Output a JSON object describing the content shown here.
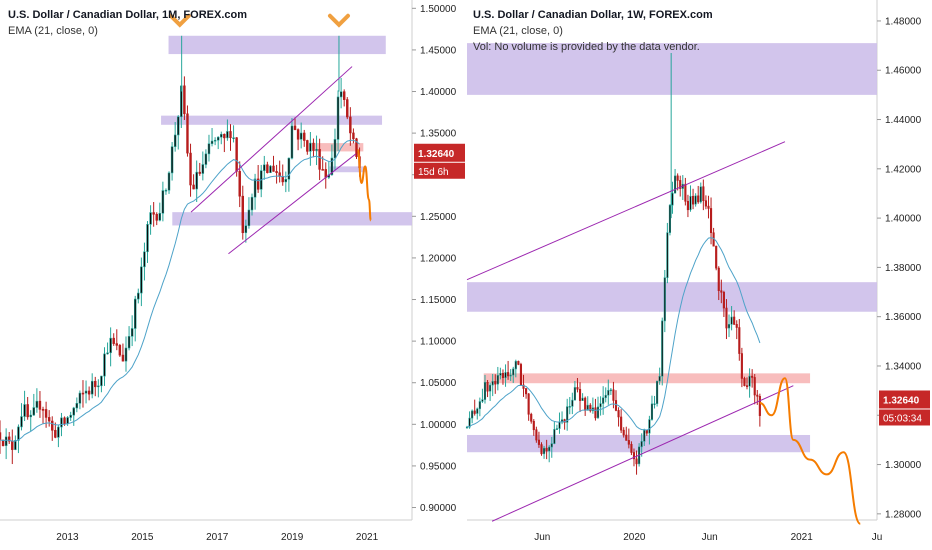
{
  "colors": {
    "up": "#26a69a",
    "down": "#b71c1c",
    "body_up": "#0a0a0a",
    "ema": "#4ea3c9",
    "zone": "#cdbfea",
    "resist_zone": "#f7b6b6",
    "channel": "#9c27b0",
    "projection": "#f57c00",
    "price_tag": "#c62828",
    "grid": "#e6e6e6"
  },
  "chart_data": [
    {
      "type": "candlestick",
      "title": "U.S. Dollar / Canadian Dollar, 1M, FOREX.com",
      "indicator": "EMA (21, close, 0)",
      "y_ticks": [
        "0.90000",
        "0.95000",
        "1.00000",
        "1.05000",
        "1.10000",
        "1.15000",
        "1.20000",
        "1.25000",
        "1.30000",
        "1.35000",
        "1.40000",
        "1.45000",
        "1.50000"
      ],
      "ylim": [
        0.885,
        1.51
      ],
      "x_ticks": [
        "2013",
        "2015",
        "2017",
        "2019",
        "2021"
      ],
      "xlim": [
        2011.2,
        2022.2
      ],
      "last_price": "1.32640",
      "countdown": "15d 6h",
      "price_path": [
        [
          2011.2,
          0.99
        ],
        [
          2011.5,
          0.97
        ],
        [
          2011.8,
          1.02
        ],
        [
          2012.0,
          1.0
        ],
        [
          2012.3,
          1.03
        ],
        [
          2012.6,
          0.99
        ],
        [
          2012.9,
          1.0
        ],
        [
          2013.2,
          1.02
        ],
        [
          2013.5,
          1.04
        ],
        [
          2013.8,
          1.05
        ],
        [
          2014.1,
          1.1
        ],
        [
          2014.5,
          1.08
        ],
        [
          2014.9,
          1.16
        ],
        [
          2015.2,
          1.25
        ],
        [
          2015.5,
          1.26
        ],
        [
          2015.8,
          1.33
        ],
        [
          2016.05,
          1.4
        ],
        [
          2016.3,
          1.28
        ],
        [
          2016.6,
          1.31
        ],
        [
          2016.9,
          1.34
        ],
        [
          2017.2,
          1.34
        ],
        [
          2017.4,
          1.36
        ],
        [
          2017.7,
          1.23
        ],
        [
          2017.9,
          1.28
        ],
        [
          2018.2,
          1.3
        ],
        [
          2018.5,
          1.31
        ],
        [
          2018.8,
          1.29
        ],
        [
          2019.0,
          1.36
        ],
        [
          2019.3,
          1.34
        ],
        [
          2019.6,
          1.33
        ],
        [
          2019.9,
          1.3
        ],
        [
          2020.1,
          1.32
        ],
        [
          2020.25,
          1.41
        ],
        [
          2020.5,
          1.36
        ],
        [
          2020.7,
          1.32
        ],
        [
          2020.8,
          1.31
        ]
      ],
      "zones": [
        {
          "y0": 1.445,
          "y1": 1.467,
          "x0": 2015.7,
          "x1": 2021.5
        },
        {
          "y0": 1.36,
          "y1": 1.371,
          "x0": 2015.5,
          "x1": 2021.4
        },
        {
          "y0": 1.303,
          "y1": 1.31,
          "x0": 2020.0,
          "x1": 2021.0
        },
        {
          "y0": 1.239,
          "y1": 1.255,
          "x0": 2015.8,
          "x1": 2022.2
        }
      ],
      "resist_zone": {
        "y0": 1.328,
        "y1": 1.338,
        "x0": 2019.6,
        "x1": 2020.9
      },
      "channel_lines": [
        [
          [
            2016.3,
            1.255
          ],
          [
            2020.6,
            1.43
          ]
        ],
        [
          [
            2017.3,
            1.205
          ],
          [
            2020.7,
            1.325
          ]
        ]
      ],
      "projection": [
        [
          2020.75,
          1.33
        ],
        [
          2020.85,
          1.29
        ],
        [
          2020.95,
          1.31
        ],
        [
          2021.05,
          1.27
        ],
        [
          2021.1,
          1.245
        ]
      ],
      "markers": [
        [
          2016.0,
          1.485
        ],
        [
          2020.25,
          1.485
        ]
      ]
    },
    {
      "type": "candlestick",
      "title": "U.S. Dollar / Canadian Dollar, 1W, FOREX.com",
      "indicator": "EMA (21, close, 0)",
      "note": "Vol: No volume is provided by the data vendor.",
      "y_ticks": [
        "1.28000",
        "1.30000",
        "1.32000",
        "1.34000",
        "1.36000",
        "1.38000",
        "1.40000",
        "1.42000",
        "1.44000",
        "1.46000",
        "1.48000"
      ],
      "ylim": [
        1.2775,
        1.4885
      ],
      "x_ticks": [
        "Jun",
        "2020",
        "Jun",
        "2021",
        "Ju"
      ],
      "xlim": [
        2019.0,
        2021.45
      ],
      "last_price": "1.32640",
      "countdown": "05:03:34",
      "price_path": [
        [
          2019.0,
          1.315
        ],
        [
          2019.1,
          1.33
        ],
        [
          2019.2,
          1.335
        ],
        [
          2019.3,
          1.34
        ],
        [
          2019.38,
          1.32
        ],
        [
          2019.45,
          1.305
        ],
        [
          2019.55,
          1.315
        ],
        [
          2019.65,
          1.33
        ],
        [
          2019.75,
          1.32
        ],
        [
          2019.85,
          1.33
        ],
        [
          2019.95,
          1.31
        ],
        [
          2020.0,
          1.3
        ],
        [
          2020.08,
          1.315
        ],
        [
          2020.15,
          1.335
        ],
        [
          2020.2,
          1.4
        ],
        [
          2020.25,
          1.42
        ],
        [
          2020.32,
          1.405
        ],
        [
          2020.4,
          1.41
        ],
        [
          2020.45,
          1.4
        ],
        [
          2020.5,
          1.375
        ],
        [
          2020.55,
          1.355
        ],
        [
          2020.6,
          1.36
        ],
        [
          2020.65,
          1.33
        ],
        [
          2020.7,
          1.335
        ],
        [
          2020.75,
          1.322
        ]
      ],
      "zones": [
        {
          "y0": 1.45,
          "y1": 1.471,
          "x0": 2019.0,
          "x1": 2021.45
        },
        {
          "y0": 1.362,
          "y1": 1.374,
          "x0": 2019.0,
          "x1": 2021.45
        },
        {
          "y0": 1.305,
          "y1": 1.312,
          "x0": 2019.0,
          "x1": 2021.05
        }
      ],
      "resist_zone": {
        "y0": 1.333,
        "y1": 1.337,
        "x0": 2019.1,
        "x1": 2021.05
      },
      "channel_lines": [
        [
          [
            2019.0,
            1.375
          ],
          [
            2020.9,
            1.431
          ]
        ],
        [
          [
            2019.15,
            1.277
          ],
          [
            2020.95,
            1.332
          ]
        ]
      ],
      "projection": [
        [
          2020.75,
          1.325
        ],
        [
          2020.82,
          1.32
        ],
        [
          2020.9,
          1.335
        ],
        [
          2020.95,
          1.31
        ],
        [
          2021.05,
          1.302
        ],
        [
          2021.15,
          1.296
        ],
        [
          2021.25,
          1.305
        ],
        [
          2021.35,
          1.276
        ]
      ]
    }
  ]
}
